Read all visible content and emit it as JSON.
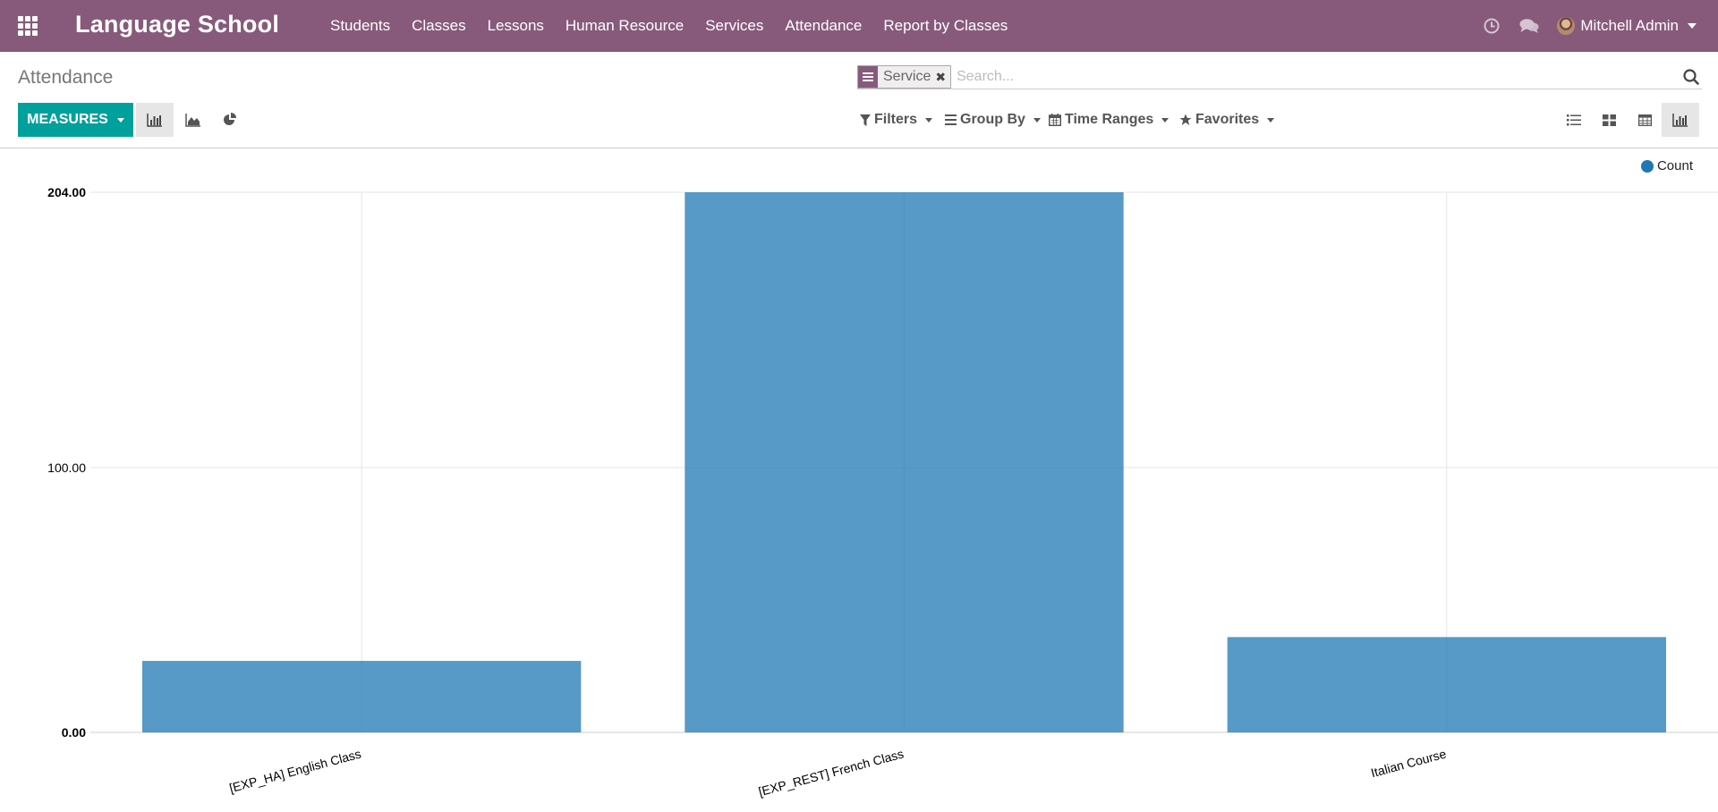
{
  "navbar": {
    "brand": "Language School",
    "menu": [
      "Students",
      "Classes",
      "Lessons",
      "Human Resource",
      "Services",
      "Attendance",
      "Report by Classes"
    ],
    "user_name": "Mitchell Admin",
    "accent_color": "#875a7b"
  },
  "control": {
    "breadcrumb": "Attendance",
    "facet_label": "Service",
    "search_placeholder": "Search...",
    "measures_label": "MEASURES",
    "filters_label": "Filters",
    "groupby_label": "Group By",
    "timeranges_label": "Time Ranges",
    "favorites_label": "Favorites",
    "primary_color": "#00a09d"
  },
  "chart_data": {
    "type": "bar",
    "categories": [
      "[EXP_HA] English Class",
      "[EXP_REST] French Class",
      "Italian Course"
    ],
    "series": [
      {
        "name": "Count",
        "values": [
          27,
          204,
          36
        ],
        "color": "#1f77b4"
      }
    ],
    "yticks": [
      "0.00",
      "100.00",
      "204.00"
    ],
    "ylim": [
      0,
      204
    ],
    "grid": true,
    "legend_position": "top-right",
    "xlabel": "",
    "ylabel": "",
    "title": ""
  }
}
